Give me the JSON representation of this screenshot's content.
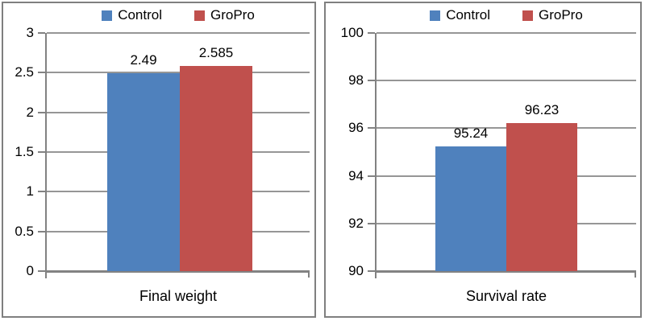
{
  "figure": {
    "background": "#ffffff",
    "panel_border_color": "#7f7f7f"
  },
  "palette": {
    "control_blue": "#4F81BD",
    "gropro_red": "#C0504D",
    "gridline_gray": "#969696",
    "axis_gray": "#828282",
    "text_black": "#000000"
  },
  "legend": {
    "position": "top",
    "items": [
      {
        "label": "Control",
        "color": "#4F81BD"
      },
      {
        "label": "GroPro",
        "color": "#C0504D"
      }
    ]
  },
  "chart_data": [
    {
      "type": "bar",
      "title": "",
      "categories": [
        "Final weight"
      ],
      "series": [
        {
          "name": "Control",
          "color": "#4F81BD",
          "values": [
            2.49
          ],
          "value_labels": [
            "2.49"
          ]
        },
        {
          "name": "GroPro",
          "color": "#C0504D",
          "values": [
            2.585
          ],
          "value_labels": [
            "2.585"
          ]
        }
      ],
      "xlabel": "",
      "ylabel": "",
      "ylim": [
        0,
        3
      ],
      "yticks": [
        0,
        0.5,
        1,
        1.5,
        2,
        2.5,
        3
      ],
      "ytick_labels": [
        "0",
        "0.5",
        "1",
        "1.5",
        "2",
        "2.5",
        "3"
      ],
      "grid": true,
      "legend_position": "top",
      "data_labels_shown": true
    },
    {
      "type": "bar",
      "title": "",
      "categories": [
        "Survival rate"
      ],
      "series": [
        {
          "name": "Control",
          "color": "#4F81BD",
          "values": [
            95.24
          ],
          "value_labels": [
            "95.24"
          ]
        },
        {
          "name": "GroPro",
          "color": "#C0504D",
          "values": [
            96.23
          ],
          "value_labels": [
            "96.23"
          ]
        }
      ],
      "xlabel": "",
      "ylabel": "",
      "ylim": [
        90,
        100
      ],
      "yticks": [
        90,
        92,
        94,
        96,
        98,
        100
      ],
      "ytick_labels": [
        "90",
        "92",
        "94",
        "96",
        "98",
        "100"
      ],
      "grid": true,
      "legend_position": "top",
      "data_labels_shown": true
    }
  ]
}
